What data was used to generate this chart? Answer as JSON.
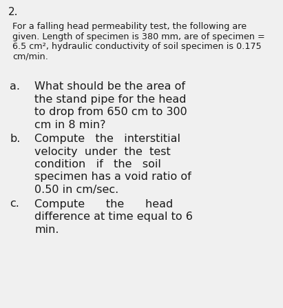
{
  "background_color": "#f0f0f0",
  "text_color": "#1a1a1a",
  "number": "2.",
  "intro_line1": "For a falling head permeability test, the following are",
  "intro_line2": "given. Length of specimen is 380 mm, are of specimen =",
  "intro_line3": "6.5 cm², hydraulic conductivity of soil specimen is 0.175",
  "intro_line4": "cm/min.",
  "part_a_label": "a.",
  "part_a_lines": [
    "What should be the area of",
    "the stand pipe for the head",
    "to drop from 650 cm to 300",
    "cm in 8 min?"
  ],
  "part_b_label": "b.",
  "part_b_lines": [
    "Compute   the   interstitial",
    "velocity  under  the  test",
    "condition   if   the   soil",
    "specimen has a void ratio of",
    "0.50 in cm/sec."
  ],
  "part_c_label": "c.",
  "part_c_lines": [
    "Compute      the      head",
    "difference at time equal to 6",
    "min."
  ],
  "number_fontsize": 11,
  "intro_fontsize": 9.2,
  "label_fontsize": 11.5,
  "body_fontsize": 11.5,
  "intro_linespacing": 14.5,
  "body_linespacing": 18.5
}
